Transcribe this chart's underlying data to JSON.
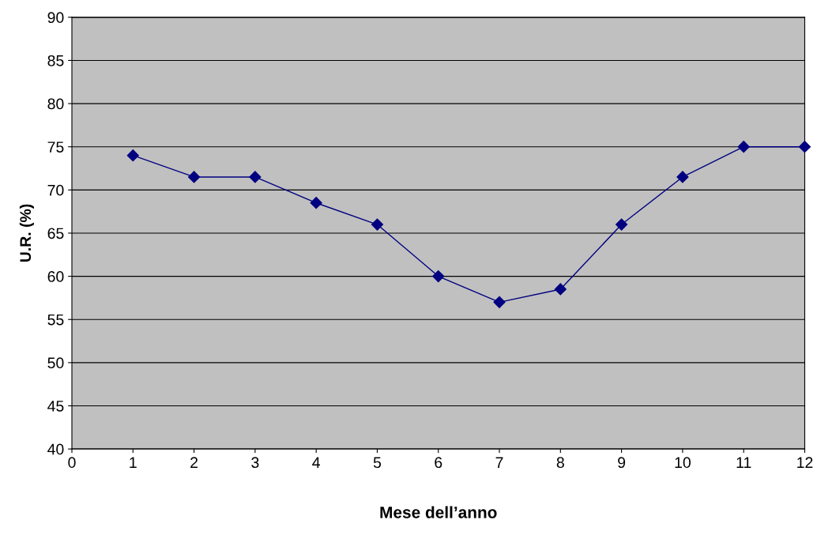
{
  "chart_data": {
    "type": "line",
    "xlabel": "Mese dell’anno",
    "ylabel": "U.R. (%)",
    "x": [
      1,
      2,
      3,
      4,
      5,
      6,
      7,
      8,
      9,
      10,
      11,
      12
    ],
    "series": [
      {
        "color": "#000080",
        "values": [
          74,
          71.5,
          71.5,
          68.5,
          66,
          60,
          57,
          58.5,
          66,
          71.5,
          75,
          75
        ]
      }
    ],
    "xlim": [
      0,
      12
    ],
    "xticks": [
      0,
      1,
      2,
      3,
      4,
      5,
      6,
      7,
      8,
      9,
      10,
      11,
      12
    ],
    "ylim": [
      40,
      90
    ],
    "yticks": [
      40,
      45,
      50,
      55,
      60,
      65,
      70,
      75,
      80,
      85,
      90
    ],
    "grid": "y",
    "marker": "diamond",
    "line_style": "solid"
  }
}
